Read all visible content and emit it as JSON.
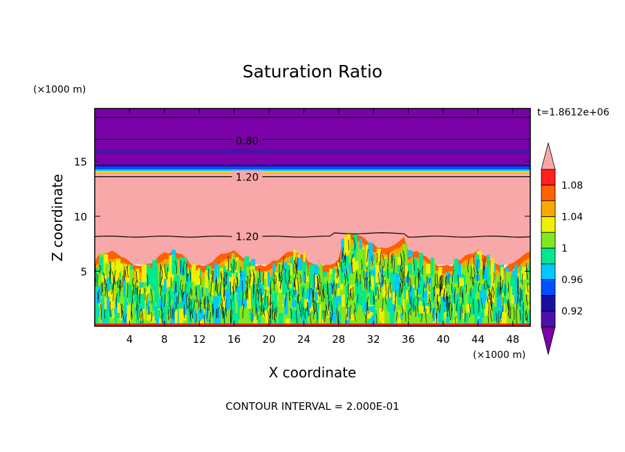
{
  "chart_data": {
    "type": "heatmap",
    "title": "Saturation Ratio",
    "xlabel": "X coordinate",
    "ylabel": "Z coordinate",
    "x_units": "(×1000 m)",
    "y_units": "(×1000 m)",
    "time_label": "t=1.8612e+06",
    "footer": "CONTOUR INTERVAL = 2.000E-01",
    "xlim": [
      0,
      50
    ],
    "ylim": [
      0,
      19.8
    ],
    "xticks": [
      4,
      8,
      12,
      16,
      20,
      24,
      28,
      32,
      36,
      40,
      44,
      48
    ],
    "yticks": [
      5,
      10,
      15
    ],
    "contour_labels": [
      {
        "text": "0.80",
        "x": 17.5,
        "z": 16.9
      },
      {
        "text": "1.20",
        "x": 17.5,
        "z": 13.6
      },
      {
        "text": "1.20",
        "x": 17.5,
        "z": 8.2
      }
    ],
    "colorbar": {
      "levels": [
        0.9,
        0.92,
        0.94,
        0.96,
        0.98,
        1.0,
        1.02,
        1.04,
        1.06,
        1.08,
        1.1
      ],
      "tick_labels": [
        "0.92",
        "0.96",
        "1",
        "1.04",
        "1.08"
      ],
      "tick_values": [
        0.92,
        0.96,
        1.0,
        1.04,
        1.08
      ],
      "under_color": "#7a00a8",
      "over_color": "#f8a8a8",
      "colors": [
        "#4a10a8",
        "#1a10a0",
        "#0050ff",
        "#00c8ff",
        "#00e890",
        "#80e820",
        "#f0f000",
        "#f8a800",
        "#ff6000",
        "#ff2020"
      ]
    },
    "bands": [
      {
        "z0": 14.5,
        "z1": 19.8,
        "color": "#7a00a8"
      },
      {
        "z0": 15.7,
        "z1": 16.1,
        "color": "#4a10a8"
      },
      {
        "z0": 14.5,
        "z1": 14.7,
        "color": "#1a10a0"
      },
      {
        "z0": 14.25,
        "z1": 14.5,
        "color": "#0050ff"
      },
      {
        "z0": 14.1,
        "z1": 14.25,
        "color": "#00c8ff"
      },
      {
        "z0": 14.0,
        "z1": 14.1,
        "color": "#f0f000"
      },
      {
        "z0": 13.9,
        "z1": 14.0,
        "color": "#f8a800"
      },
      {
        "z0": 5.6,
        "z1": 13.9,
        "color": "#f8a8a8"
      }
    ],
    "contour_lines_z": [
      19.0,
      17.0,
      13.6
    ]
  }
}
